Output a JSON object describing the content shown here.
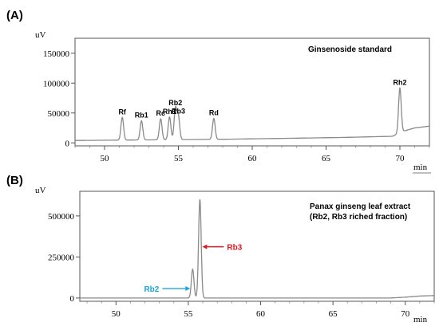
{
  "chart_data": [
    {
      "type": "line",
      "panel_label": "(A)",
      "title": "Ginsenoside standard",
      "ylabel": "uV",
      "xlabel": "min",
      "xlim": [
        48,
        72
      ],
      "ylim": [
        -5000,
        175000
      ],
      "x_ticks": [
        50,
        55,
        60,
        65,
        70
      ],
      "y_ticks": [
        0,
        50000,
        100000,
        150000
      ],
      "baseline": [
        [
          48,
          4000
        ],
        [
          58,
          6000
        ],
        [
          66,
          9000
        ],
        [
          69.5,
          11000
        ],
        [
          70.3,
          20000
        ],
        [
          71,
          25000
        ],
        [
          72,
          28000
        ]
      ],
      "peaks": [
        {
          "label": "Rf",
          "x": 51.2,
          "y": 38000
        },
        {
          "label": "Rb1",
          "x": 52.5,
          "y": 32000
        },
        {
          "label": "Rc",
          "x": 53.8,
          "y": 35000
        },
        {
          "label": "Rh1",
          "x": 54.4,
          "y": 38000
        },
        {
          "label": "Rb2",
          "x": 54.8,
          "y": 52000
        },
        {
          "label": "Rb3",
          "x": 55.0,
          "y": 38000
        },
        {
          "label": "Rd",
          "x": 57.4,
          "y": 35000
        },
        {
          "label": "Rh2",
          "x": 70.0,
          "y": 75000
        }
      ]
    },
    {
      "type": "line",
      "panel_label": "(B)",
      "title": "Panax ginseng leaf extract",
      "subtitle": "(Rb2, Rb3 riched fraction)",
      "ylabel": "uV",
      "xlabel": "min",
      "xlim": [
        47.5,
        72
      ],
      "ylim": [
        -20000,
        650000
      ],
      "x_ticks": [
        50,
        55,
        60,
        65,
        70
      ],
      "y_ticks": [
        0,
        250000,
        500000
      ],
      "baseline": [
        [
          47.5,
          0
        ],
        [
          69,
          0
        ],
        [
          70,
          5000
        ],
        [
          71,
          12000
        ],
        [
          72,
          15000
        ]
      ],
      "peaks": [
        {
          "label": "Rb2",
          "x": 55.3,
          "y": 175000,
          "color": "#1fa6d8"
        },
        {
          "label": "Rb3",
          "x": 55.8,
          "y": 600000,
          "color": "#e0191f"
        }
      ]
    }
  ]
}
